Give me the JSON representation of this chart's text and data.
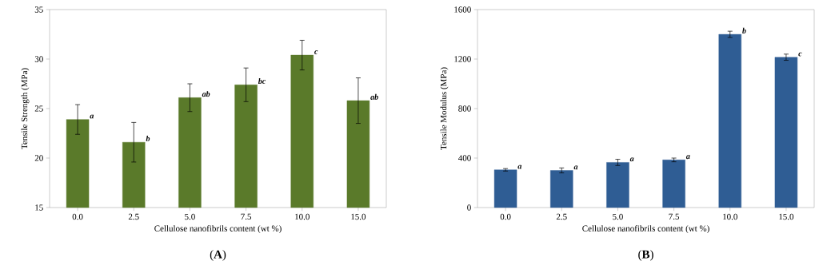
{
  "chart_data": [
    {
      "type": "bar",
      "xlabel": "Cellulose nanofibrils content (wt %)",
      "ylabel": "Tensile Strength (MPa)",
      "categories": [
        "0.0",
        "2.5",
        "5.0",
        "7.5",
        "10.0",
        "15.0"
      ],
      "values": [
        23.9,
        21.6,
        26.1,
        27.4,
        30.4,
        25.8
      ],
      "errors": [
        1.5,
        2.0,
        1.4,
        1.7,
        1.5,
        2.3
      ],
      "color": "#5a7a2a",
      "ylim": [
        15,
        35
      ],
      "yticks": [
        15,
        20,
        25,
        30,
        35
      ],
      "annotations": [
        {
          "text": "*a*",
          "x": "0.0",
          "y": 23.9
        },
        {
          "text": "*b*",
          "x": "2.5",
          "y": 21.6
        },
        {
          "text": "*ab*",
          "x": "5.0",
          "y": 26.1
        },
        {
          "text": "*bc*",
          "x": "7.5",
          "y": 27.4
        },
        {
          "text": "*c*",
          "x": "10.0",
          "y": 30.4
        },
        {
          "text": "*ab*",
          "x": "15.0",
          "y": 25.8
        },
        "(**A**)"
      ]
    },
    {
      "type": "bar",
      "xlabel": "Cellulose nanofibrils content (wt %)",
      "ylabel": "Tensile Modulus (MPa)",
      "categories": [
        "0.0",
        "2.5",
        "5.0",
        "7.5",
        "10.0",
        "15.0"
      ],
      "values": [
        305,
        300,
        365,
        385,
        1400,
        1215
      ],
      "errors": [
        10,
        20,
        25,
        15,
        25,
        25
      ],
      "color": "#2f5d94",
      "ylim": [
        0,
        1600
      ],
      "yticks": [
        0,
        400,
        800,
        1200,
        1600
      ],
      "annotations": [
        {
          "text": "*a*",
          "x": "0.0",
          "y": 305
        },
        {
          "text": "*a*",
          "x": "2.5",
          "y": 300
        },
        {
          "text": "*a*",
          "x": "5.0",
          "y": 365
        },
        {
          "text": "*a*",
          "x": "7.5",
          "y": 385
        },
        {
          "text": "*b*",
          "x": "10.0",
          "y": 1400
        },
        {
          "text": "*c*",
          "x": "15.0",
          "y": 1215
        },
        "(**B**)"
      ]
    }
  ]
}
